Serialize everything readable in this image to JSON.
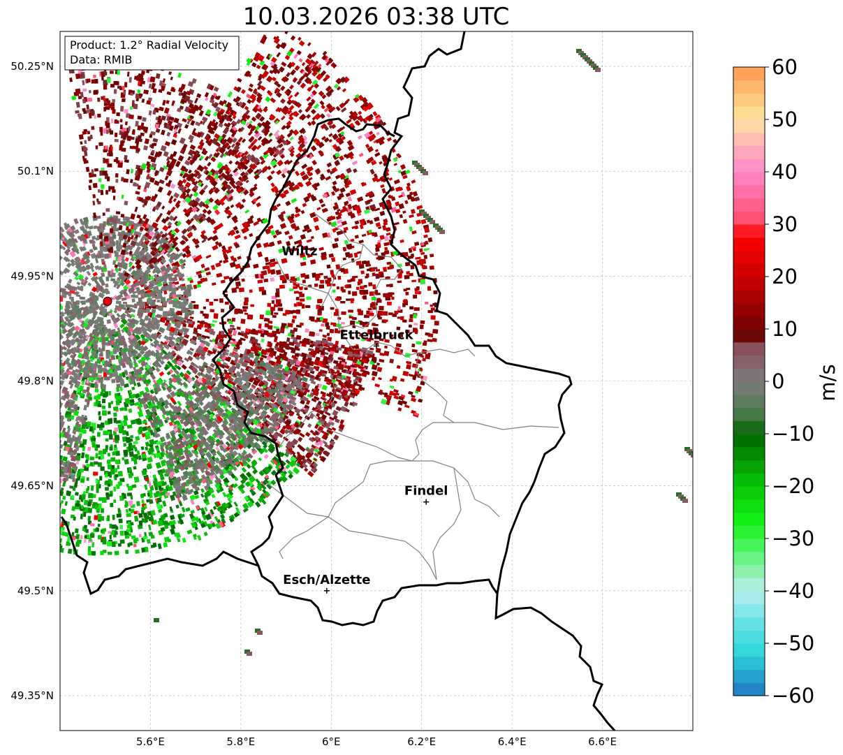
{
  "title": "10.03.2026 03:38 UTC",
  "info_box": {
    "line1": "Product: 1.2° Radial Velocity",
    "line2": "Data: RMIB"
  },
  "map": {
    "lon_range": [
      5.4,
      6.8
    ],
    "lat_range": [
      49.3,
      50.3
    ],
    "lat_ticks": [
      {
        "value": 50.25,
        "label": "50.25°N"
      },
      {
        "value": 50.1,
        "label": "50.1°N"
      },
      {
        "value": 49.95,
        "label": "49.95°N"
      },
      {
        "value": 49.8,
        "label": "49.8°N"
      },
      {
        "value": 49.65,
        "label": "49.65°N"
      },
      {
        "value": 49.5,
        "label": "49.5°N"
      },
      {
        "value": 49.35,
        "label": "49.35°N"
      }
    ],
    "lon_ticks": [
      {
        "value": 5.6,
        "label": "5.6°E"
      },
      {
        "value": 5.8,
        "label": "5.8°E"
      },
      {
        "value": 6.0,
        "label": "6°E"
      },
      {
        "value": 6.2,
        "label": "6.2°E"
      },
      {
        "value": 6.4,
        "label": "6.4°E"
      },
      {
        "value": 6.6,
        "label": "6.6°E"
      }
    ],
    "radar_site": {
      "lon": 5.505,
      "lat": 49.914,
      "color": "#e8000b"
    },
    "cities": [
      {
        "name": "Wiltz",
        "lon": 5.93,
        "lat": 49.97,
        "marker": false
      },
      {
        "name": "Ettelbruck",
        "lon": 6.1,
        "lat": 49.85,
        "marker": true
      },
      {
        "name": "Findel",
        "lon": 6.21,
        "lat": 49.627,
        "marker": true
      },
      {
        "name": "Esch/Alzette",
        "lon": 5.99,
        "lat": 49.5,
        "marker": true
      }
    ],
    "border_color": "#000000",
    "canton_color": "#808080"
  },
  "colorbar": {
    "label": "m/s",
    "min": -60,
    "max": 60,
    "ticks": [
      {
        "value": 60,
        "label": "60"
      },
      {
        "value": 50,
        "label": "50"
      },
      {
        "value": 40,
        "label": "40"
      },
      {
        "value": 30,
        "label": "30"
      },
      {
        "value": 20,
        "label": "20"
      },
      {
        "value": 10,
        "label": "10"
      },
      {
        "value": 0,
        "label": "0"
      },
      {
        "value": -10,
        "label": "−10"
      },
      {
        "value": -20,
        "label": "−20"
      },
      {
        "value": -30,
        "label": "−30"
      },
      {
        "value": -40,
        "label": "−40"
      },
      {
        "value": -50,
        "label": "−50"
      },
      {
        "value": -60,
        "label": "−60"
      }
    ],
    "stops": [
      {
        "v": -60,
        "c": "#1f77c4"
      },
      {
        "v": -56,
        "c": "#25a4cc"
      },
      {
        "v": -52,
        "c": "#2ed6d9"
      },
      {
        "v": -46,
        "c": "#66e3e3"
      },
      {
        "v": -40,
        "c": "#b8eef0"
      },
      {
        "v": -36,
        "c": "#8cf0a8"
      },
      {
        "v": -32,
        "c": "#4ef566"
      },
      {
        "v": -26,
        "c": "#0ef00e"
      },
      {
        "v": -18,
        "c": "#07b507"
      },
      {
        "v": -10,
        "c": "#006400"
      },
      {
        "v": -6,
        "c": "#4c7a4c"
      },
      {
        "v": 0,
        "c": "#7e7e7e"
      },
      {
        "v": 7,
        "c": "#8a4a56"
      },
      {
        "v": 9,
        "c": "#6a0000"
      },
      {
        "v": 20,
        "c": "#cc0000"
      },
      {
        "v": 28,
        "c": "#ff0000"
      },
      {
        "v": 30,
        "c": "#ff4a66"
      },
      {
        "v": 40,
        "c": "#ff88cc"
      },
      {
        "v": 45,
        "c": "#ffb0b8"
      },
      {
        "v": 50,
        "c": "#ffe59e"
      },
      {
        "v": 60,
        "c": "#ff9a50"
      }
    ]
  }
}
